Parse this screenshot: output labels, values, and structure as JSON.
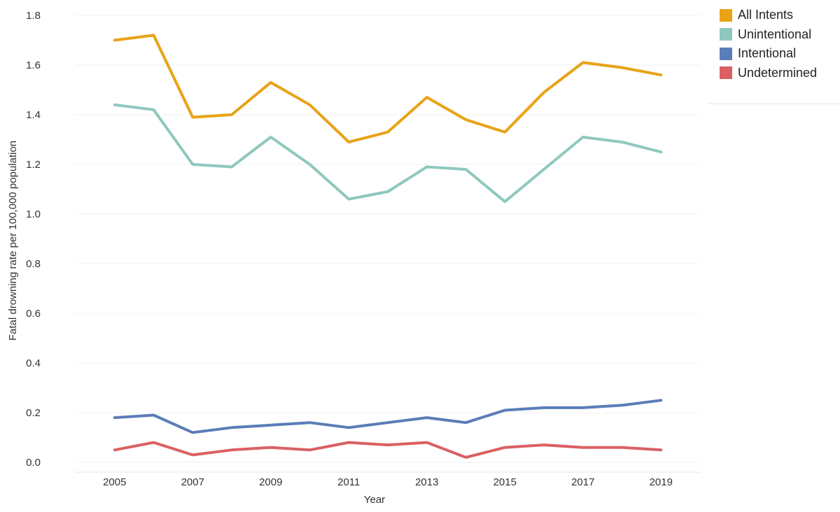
{
  "chart_data": {
    "type": "line",
    "title": "",
    "xlabel": "Year",
    "ylabel": "Fatal drowning rate per 100,000 population",
    "x": [
      2005,
      2006,
      2007,
      2008,
      2009,
      2010,
      2011,
      2012,
      2013,
      2014,
      2015,
      2016,
      2017,
      2018,
      2019
    ],
    "x_tick_labels": [
      "2005",
      "2007",
      "2009",
      "2011",
      "2013",
      "2015",
      "2017",
      "2019"
    ],
    "y_tick_labels": [
      "0.0",
      "0.2",
      "0.4",
      "0.6",
      "0.8",
      "1.0",
      "1.2",
      "1.4",
      "1.6",
      "1.8"
    ],
    "xlim": [
      2004,
      2020
    ],
    "ylim": [
      0,
      1.8
    ],
    "grid": "horizontal",
    "legend_position": "top-right",
    "series": [
      {
        "name": "All Intents",
        "color": "#E8A317",
        "values": [
          1.7,
          1.72,
          1.39,
          1.4,
          1.53,
          1.44,
          1.29,
          1.33,
          1.47,
          1.38,
          1.33,
          1.49,
          1.61,
          1.59,
          1.56
        ]
      },
      {
        "name": "Unintentional",
        "color": "#8FC8BE",
        "values": [
          1.44,
          1.42,
          1.2,
          1.19,
          1.31,
          1.2,
          1.06,
          1.09,
          1.19,
          1.18,
          1.05,
          1.18,
          1.31,
          1.29,
          1.25
        ]
      },
      {
        "name": "Intentional",
        "color": "#5B7DB8",
        "values": [
          0.18,
          0.19,
          0.12,
          0.14,
          0.15,
          0.16,
          0.14,
          0.16,
          0.18,
          0.16,
          0.21,
          0.22,
          0.22,
          0.23,
          0.25
        ]
      },
      {
        "name": "Undetermined",
        "color": "#DB6062",
        "values": [
          0.05,
          0.08,
          0.03,
          0.05,
          0.06,
          0.05,
          0.08,
          0.07,
          0.08,
          0.02,
          0.06,
          0.07,
          0.06,
          0.06,
          0.05
        ]
      }
    ]
  }
}
